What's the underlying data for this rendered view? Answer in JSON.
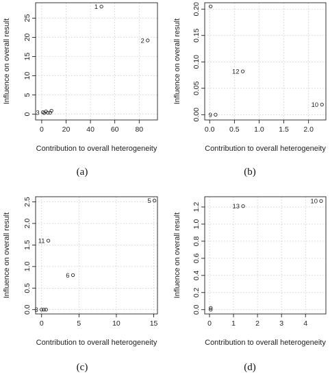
{
  "chart_data": [
    {
      "type": "scatter",
      "caption": "(a)",
      "xlabel": "Contribution to overall heterogeneity",
      "ylabel": "Influence on overall result",
      "xlim": [
        -5,
        95
      ],
      "ylim": [
        -1.5,
        29
      ],
      "xticks": [
        0,
        20,
        40,
        60,
        80
      ],
      "yticks": [
        0,
        5,
        10,
        15,
        20,
        25
      ],
      "grid": true,
      "points": [
        {
          "label": "1",
          "x": 49,
          "y": 28
        },
        {
          "label": "2",
          "x": 87,
          "y": 19.2
        },
        {
          "label": "3",
          "x": 1,
          "y": 0.5
        },
        {
          "label": "",
          "x": 2,
          "y": 0.3
        },
        {
          "label": "",
          "x": 3.5,
          "y": 0.7
        },
        {
          "label": "",
          "x": 5,
          "y": 0.4
        },
        {
          "label": "",
          "x": 7,
          "y": 0.4
        },
        {
          "label": "",
          "x": 8,
          "y": 0.9
        }
      ]
    },
    {
      "type": "scatter",
      "caption": "(b)",
      "xlabel": "Contribution to overall heterogeneity",
      "ylabel": "Influence on overall result",
      "xlim": [
        -0.1,
        2.35
      ],
      "ylim": [
        -0.01,
        0.212
      ],
      "xticks": [
        0.0,
        0.5,
        1.0,
        1.5,
        2.0
      ],
      "xtick_labels": [
        "0.0",
        "0.5",
        "1.0",
        "1.5",
        "2.0"
      ],
      "yticks": [
        0.0,
        0.05,
        0.1,
        0.15,
        0.2
      ],
      "ytick_labels": [
        "0.00",
        "0.05",
        "0.10",
        "0.15",
        "0.20"
      ],
      "grid": true,
      "points": [
        {
          "label": "",
          "x": 0.02,
          "y": 0.205
        },
        {
          "label": "12",
          "x": 0.67,
          "y": 0.082
        },
        {
          "label": "10",
          "x": 2.27,
          "y": 0.019
        },
        {
          "label": "9",
          "x": 0.12,
          "y": 0.0
        }
      ]
    },
    {
      "type": "scatter",
      "caption": "(c)",
      "xlabel": "Contribution to overall heterogeneity",
      "ylabel": "Influence on overall result",
      "xlim": [
        -0.8,
        15.5
      ],
      "ylim": [
        -0.1,
        2.62
      ],
      "xticks": [
        0,
        5,
        10,
        15
      ],
      "yticks": [
        0.0,
        0.5,
        1.0,
        1.5,
        2.0,
        2.5
      ],
      "ytick_labels": [
        "0.0",
        "0.5",
        "1.0",
        "1.5",
        "2.0",
        "2.5"
      ],
      "grid": true,
      "points": [
        {
          "label": "5",
          "x": 15.1,
          "y": 2.53
        },
        {
          "label": "11",
          "x": 0.9,
          "y": 1.6
        },
        {
          "label": "6",
          "x": 4.2,
          "y": 0.8
        },
        {
          "label": "3",
          "x": 0.0,
          "y": 0.0
        },
        {
          "label": "",
          "x": 0.3,
          "y": 0.0
        },
        {
          "label": "",
          "x": 0.6,
          "y": 0.0
        }
      ]
    },
    {
      "type": "scatter",
      "caption": "(d)",
      "xlabel": "Contribution to overall heterogeneity",
      "ylabel": "Influence on overall result",
      "xlim": [
        -0.2,
        4.85
      ],
      "ylim": [
        -0.05,
        1.32
      ],
      "xticks": [
        0,
        1,
        2,
        3,
        4
      ],
      "yticks": [
        0.0,
        0.2,
        0.4,
        0.6,
        0.8,
        1.0,
        1.2
      ],
      "ytick_labels": [
        "0.0",
        "0.2",
        "0.4",
        "0.6",
        "0.8",
        "1.0",
        "1.2"
      ],
      "grid": true,
      "points": [
        {
          "label": "10",
          "x": 4.65,
          "y": 1.27
        },
        {
          "label": "13",
          "x": 1.4,
          "y": 1.21
        },
        {
          "label": "",
          "x": 0.05,
          "y": 0.02
        },
        {
          "label": "",
          "x": 0.05,
          "y": 0.0
        }
      ]
    }
  ]
}
